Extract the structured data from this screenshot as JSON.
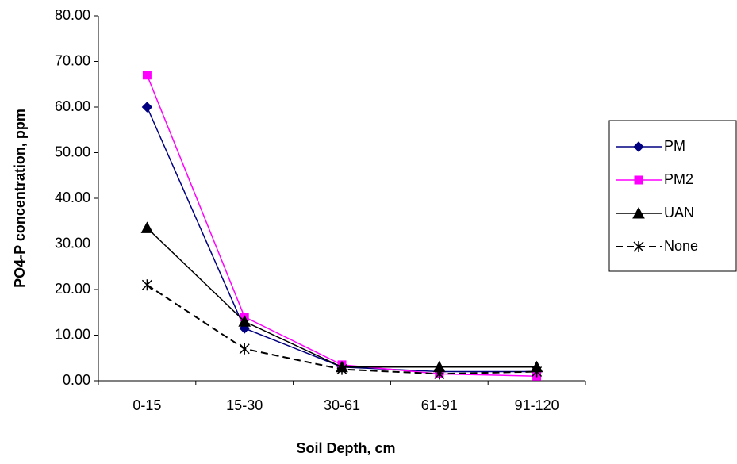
{
  "chart_data": {
    "type": "line",
    "x_label": "Soil Depth, cm",
    "y_label": "PO4-P concentration, ppm",
    "categories": [
      "0-15",
      "15-30",
      "30-61",
      "61-91",
      "91-120"
    ],
    "series": [
      {
        "name": "PM",
        "color": "#000080",
        "marker": "diamond",
        "dashed": false,
        "values": [
          60,
          11.5,
          3,
          2,
          2
        ]
      },
      {
        "name": "PM2",
        "color": "#ff00ff",
        "marker": "square",
        "dashed": false,
        "values": [
          67,
          14,
          3.5,
          1.5,
          1
        ]
      },
      {
        "name": "UAN",
        "color": "#000000",
        "marker": "triangle",
        "dashed": false,
        "values": [
          33.5,
          13,
          3,
          3,
          3
        ]
      },
      {
        "name": "None",
        "color": "#000000",
        "marker": "star",
        "dashed": true,
        "values": [
          21,
          7,
          2.5,
          1.5,
          2
        ]
      }
    ],
    "ylim": [
      0,
      80
    ],
    "yticks": [
      {
        "value": 0,
        "label": "0.00"
      },
      {
        "value": 10,
        "label": "10.00"
      },
      {
        "value": 20,
        "label": "20.00"
      },
      {
        "value": 30,
        "label": "30.00"
      },
      {
        "value": 40,
        "label": "40.00"
      },
      {
        "value": 50,
        "label": "50.00"
      },
      {
        "value": 60,
        "label": "60.00"
      },
      {
        "value": 70,
        "label": "70.00"
      },
      {
        "value": 80,
        "label": "80.00"
      }
    ],
    "grid": false,
    "legend": "right"
  }
}
